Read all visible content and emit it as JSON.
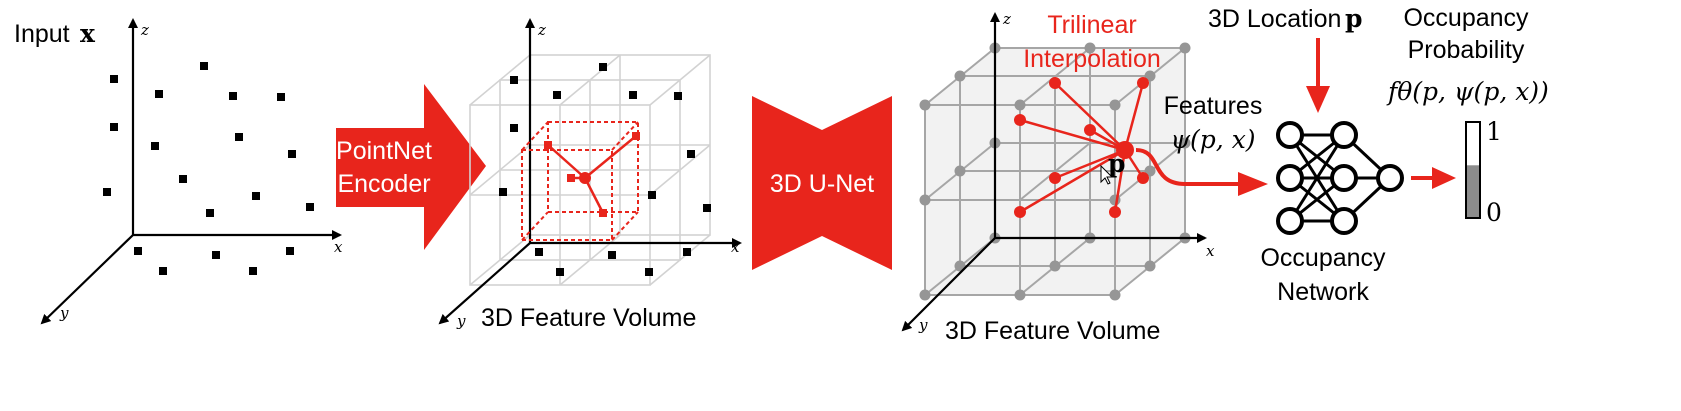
{
  "panel1": {
    "input_label": "Input",
    "input_symbol": "x"
  },
  "axes": {
    "x": "x",
    "y": "y",
    "z": "z"
  },
  "encoder": {
    "line1": "PointNet",
    "line2": "Encoder"
  },
  "panel2": {
    "caption": "3D Feature Volume"
  },
  "unet": {
    "label": "3D U-Net"
  },
  "panel3": {
    "caption": "3D Feature Volume",
    "trilinear_line1": "Trilinear",
    "trilinear_line2": "Interpolation",
    "point_label": "p"
  },
  "features": {
    "label": "Features",
    "formula": "ψ(p, x)"
  },
  "location": {
    "label": "3D Location",
    "symbol": "p"
  },
  "network": {
    "line1": "Occupancy",
    "line2": "Network"
  },
  "probability": {
    "line1": "Occupancy",
    "line2": "Probability",
    "formula": "fθ(p, ψ(p, x))",
    "scale_top": "1",
    "scale_bottom": "0",
    "level": 0.55
  },
  "colors": {
    "accent": "#e8251c",
    "grid": "#a6a6a6",
    "points": "#000000"
  }
}
